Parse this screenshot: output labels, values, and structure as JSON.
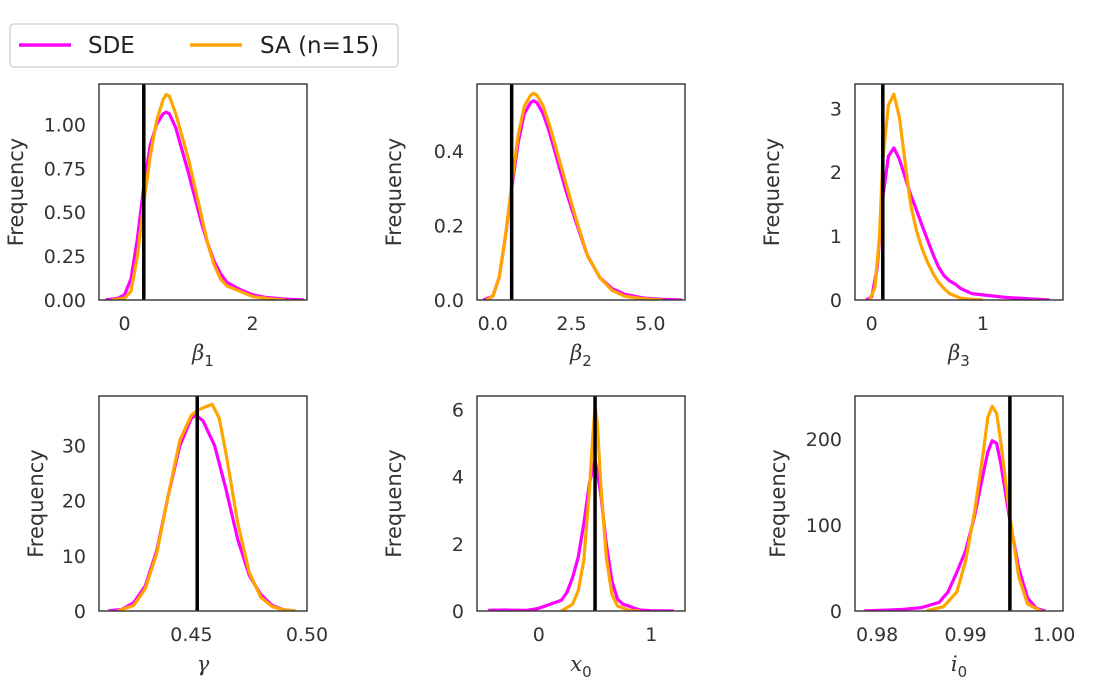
{
  "legend": {
    "entries": [
      {
        "label": "SDE",
        "color": "#ff00ff"
      },
      {
        "label": "SA (n=15)",
        "color": "#ffa500"
      }
    ]
  },
  "truth_color": "#000000",
  "chart_data": [
    {
      "type": "line",
      "title": "",
      "ylabel": "Frequency",
      "xlabel_symbol": "β",
      "xlabel_sub": "1",
      "xlim": [
        -0.4,
        2.85
      ],
      "ylim": [
        0,
        1.23
      ],
      "xticks": [
        0,
        2
      ],
      "xtick_labels": [
        "0",
        "2"
      ],
      "yticks": [
        0,
        0.25,
        0.5,
        0.75,
        1.0
      ],
      "ytick_labels": [
        "0.00",
        "0.25",
        "0.50",
        "0.75",
        "1.00"
      ],
      "truth": 0.3,
      "series": [
        {
          "name": "SDE",
          "x": [
            -0.3,
            -0.1,
            0.0,
            0.1,
            0.2,
            0.3,
            0.4,
            0.5,
            0.6,
            0.65,
            0.7,
            0.8,
            0.9,
            1.0,
            1.1,
            1.2,
            1.3,
            1.4,
            1.5,
            1.6,
            1.8,
            2.0,
            2.2,
            2.5,
            2.8
          ],
          "y": [
            0.0,
            0.01,
            0.03,
            0.12,
            0.35,
            0.65,
            0.88,
            1.0,
            1.06,
            1.07,
            1.06,
            0.98,
            0.85,
            0.72,
            0.58,
            0.44,
            0.32,
            0.22,
            0.15,
            0.1,
            0.06,
            0.03,
            0.015,
            0.005,
            0.0
          ]
        },
        {
          "name": "SA (n=15)",
          "x": [
            -0.2,
            0.0,
            0.1,
            0.2,
            0.3,
            0.4,
            0.5,
            0.6,
            0.65,
            0.7,
            0.8,
            0.9,
            1.0,
            1.1,
            1.2,
            1.3,
            1.4,
            1.5,
            1.6,
            1.8,
            2.0,
            2.3,
            2.5
          ],
          "y": [
            0.0,
            0.01,
            0.05,
            0.25,
            0.55,
            0.82,
            1.02,
            1.14,
            1.17,
            1.16,
            1.06,
            0.93,
            0.8,
            0.64,
            0.48,
            0.32,
            0.2,
            0.12,
            0.08,
            0.05,
            0.02,
            0.005,
            0.0
          ]
        }
      ]
    },
    {
      "type": "line",
      "title": "",
      "ylabel": "Frequency",
      "xlabel_symbol": "β",
      "xlabel_sub": "2",
      "xlim": [
        -0.5,
        6.1
      ],
      "ylim": [
        0,
        0.58
      ],
      "xticks": [
        0,
        2.5,
        5
      ],
      "xtick_labels": [
        "0.0",
        "2.5",
        "5.0"
      ],
      "yticks": [
        0,
        0.2,
        0.4
      ],
      "ytick_labels": [
        "0.0",
        "0.2",
        "0.4"
      ],
      "truth": 0.6,
      "series": [
        {
          "name": "SDE",
          "x": [
            -0.3,
            0.0,
            0.2,
            0.4,
            0.6,
            0.8,
            1.0,
            1.2,
            1.3,
            1.4,
            1.6,
            1.8,
            2.0,
            2.3,
            2.6,
            3.0,
            3.4,
            3.8,
            4.2,
            4.8,
            5.4,
            6.0
          ],
          "y": [
            0.0,
            0.01,
            0.06,
            0.17,
            0.3,
            0.42,
            0.5,
            0.53,
            0.535,
            0.53,
            0.5,
            0.45,
            0.39,
            0.3,
            0.22,
            0.12,
            0.06,
            0.03,
            0.015,
            0.005,
            0.002,
            0.0
          ]
        },
        {
          "name": "SA (n=15)",
          "x": [
            -0.2,
            0.0,
            0.2,
            0.4,
            0.6,
            0.8,
            1.0,
            1.2,
            1.3,
            1.4,
            1.6,
            1.8,
            2.0,
            2.3,
            2.6,
            3.0,
            3.4,
            3.8,
            4.2,
            4.8,
            5.4
          ],
          "y": [
            0.0,
            0.01,
            0.06,
            0.17,
            0.31,
            0.44,
            0.52,
            0.55,
            0.555,
            0.55,
            0.52,
            0.47,
            0.41,
            0.32,
            0.23,
            0.12,
            0.06,
            0.025,
            0.01,
            0.003,
            0.0
          ]
        }
      ]
    },
    {
      "type": "line",
      "title": "",
      "ylabel": "Frequency",
      "xlabel_symbol": "β",
      "xlabel_sub": "3",
      "xlim": [
        -0.15,
        1.72
      ],
      "ylim": [
        0,
        3.38
      ],
      "xticks": [
        0,
        1
      ],
      "xtick_labels": [
        "0",
        "1"
      ],
      "yticks": [
        0,
        1,
        2,
        3
      ],
      "ytick_labels": [
        "0",
        "1",
        "2",
        "3"
      ],
      "truth": 0.1,
      "series": [
        {
          "name": "SDE",
          "x": [
            -0.05,
            0.0,
            0.05,
            0.1,
            0.15,
            0.2,
            0.25,
            0.3,
            0.35,
            0.4,
            0.45,
            0.5,
            0.55,
            0.6,
            0.65,
            0.7,
            0.75,
            0.8,
            0.9,
            1.0,
            1.2,
            1.4,
            1.6
          ],
          "y": [
            0.0,
            0.05,
            0.5,
            1.6,
            2.25,
            2.38,
            2.2,
            1.92,
            1.65,
            1.42,
            1.18,
            0.95,
            0.72,
            0.52,
            0.38,
            0.3,
            0.25,
            0.18,
            0.1,
            0.08,
            0.04,
            0.02,
            0.0
          ]
        },
        {
          "name": "SA (n=15)",
          "x": [
            -0.02,
            0.03,
            0.07,
            0.1,
            0.15,
            0.2,
            0.25,
            0.3,
            0.35,
            0.4,
            0.45,
            0.5,
            0.55,
            0.6,
            0.65,
            0.7,
            0.8,
            0.9,
            1.0
          ],
          "y": [
            0.0,
            0.2,
            1.0,
            2.2,
            3.05,
            3.22,
            2.85,
            2.15,
            1.5,
            1.1,
            0.82,
            0.6,
            0.42,
            0.28,
            0.18,
            0.1,
            0.03,
            0.01,
            0.0
          ]
        }
      ]
    },
    {
      "type": "line",
      "title": "",
      "ylabel": "Frequency",
      "xlabel_symbol": "γ",
      "xlabel_sub": "",
      "xlim": [
        0.41,
        0.5
      ],
      "ylim": [
        0,
        39
      ],
      "xticks": [
        0.45,
        0.5
      ],
      "xtick_labels": [
        "0.45",
        "0.50"
      ],
      "yticks": [
        0,
        10,
        20,
        30
      ],
      "ytick_labels": [
        "0",
        "10",
        "20",
        "30"
      ],
      "truth": 0.4525,
      "series": [
        {
          "name": "SDE",
          "x": [
            0.414,
            0.42,
            0.425,
            0.43,
            0.435,
            0.44,
            0.445,
            0.45,
            0.452,
            0.455,
            0.46,
            0.465,
            0.47,
            0.475,
            0.48,
            0.485,
            0.49,
            0.495
          ],
          "y": [
            0.0,
            0.3,
            1.5,
            4.5,
            11.0,
            21.0,
            30.0,
            35.0,
            35.5,
            34.5,
            30.0,
            22.0,
            13.0,
            6.5,
            3.0,
            1.0,
            0.2,
            0.0
          ]
        },
        {
          "name": "SA (n=15)",
          "x": [
            0.418,
            0.425,
            0.43,
            0.435,
            0.44,
            0.445,
            0.45,
            0.453,
            0.456,
            0.459,
            0.462,
            0.465,
            0.47,
            0.475,
            0.48,
            0.485,
            0.49,
            0.495
          ],
          "y": [
            0.0,
            1.0,
            4.0,
            10.5,
            21.0,
            31.0,
            35.5,
            36.5,
            37.0,
            37.5,
            35.0,
            28.5,
            16.0,
            7.0,
            2.5,
            0.8,
            0.2,
            0.0
          ]
        }
      ]
    },
    {
      "type": "line",
      "title": "",
      "ylabel": "Frequency",
      "xlabel_symbol": "x",
      "xlabel_sub": "0",
      "xlim": [
        -0.55,
        1.3
      ],
      "ylim": [
        0,
        6.4
      ],
      "xticks": [
        0,
        1
      ],
      "xtick_labels": [
        "0",
        "1"
      ],
      "yticks": [
        0,
        2,
        4,
        6
      ],
      "ytick_labels": [
        "0",
        "2",
        "4",
        "6"
      ],
      "truth": 0.5,
      "series": [
        {
          "name": "SDE",
          "x": [
            -0.45,
            -0.3,
            -0.1,
            0.0,
            0.1,
            0.2,
            0.25,
            0.3,
            0.35,
            0.4,
            0.45,
            0.5,
            0.55,
            0.6,
            0.65,
            0.7,
            0.75,
            0.8,
            0.85,
            0.9,
            1.0,
            1.2
          ],
          "y": [
            0.02,
            0.03,
            0.02,
            0.08,
            0.2,
            0.32,
            0.55,
            1.0,
            1.6,
            2.6,
            3.8,
            4.5,
            3.5,
            2.0,
            0.9,
            0.35,
            0.2,
            0.15,
            0.08,
            0.03,
            0.01,
            0.0
          ]
        },
        {
          "name": "SA (n=15)",
          "x": [
            0.2,
            0.3,
            0.35,
            0.4,
            0.45,
            0.48,
            0.5,
            0.52,
            0.55,
            0.6,
            0.65,
            0.7,
            0.8,
            0.9
          ],
          "y": [
            0.0,
            0.2,
            0.6,
            1.5,
            3.6,
            5.2,
            6.1,
            5.6,
            3.8,
            1.6,
            0.5,
            0.15,
            0.02,
            0.0
          ]
        }
      ]
    },
    {
      "type": "line",
      "title": "",
      "ylabel": "Frequency",
      "xlabel_symbol": "i",
      "xlabel_sub": "0",
      "xlim": [
        0.9775,
        1.001
      ],
      "ylim": [
        0,
        250
      ],
      "xticks": [
        0.98,
        0.99,
        1.0
      ],
      "xtick_labels": [
        "0.98",
        "0.99",
        "1.00"
      ],
      "yticks": [
        0,
        100,
        200
      ],
      "ytick_labels": [
        "0",
        "100",
        "200"
      ],
      "truth": 0.995,
      "series": [
        {
          "name": "SDE",
          "x": [
            0.9785,
            0.981,
            0.983,
            0.985,
            0.986,
            0.987,
            0.988,
            0.989,
            0.99,
            0.991,
            0.992,
            0.9925,
            0.993,
            0.9935,
            0.994,
            0.995,
            0.996,
            0.997,
            0.998,
            0.999
          ],
          "y": [
            0,
            1,
            2,
            4,
            7,
            10,
            22,
            45,
            70,
            110,
            160,
            185,
            198,
            195,
            170,
            105,
            50,
            15,
            3,
            0
          ]
        },
        {
          "name": "SA (n=15)",
          "x": [
            0.9855,
            0.9875,
            0.989,
            0.99,
            0.991,
            0.992,
            0.9925,
            0.993,
            0.9935,
            0.994,
            0.995,
            0.996,
            0.997,
            0.9985
          ],
          "y": [
            0,
            5,
            22,
            58,
            115,
            185,
            225,
            238,
            230,
            195,
            110,
            40,
            8,
            0
          ]
        }
      ]
    }
  ]
}
